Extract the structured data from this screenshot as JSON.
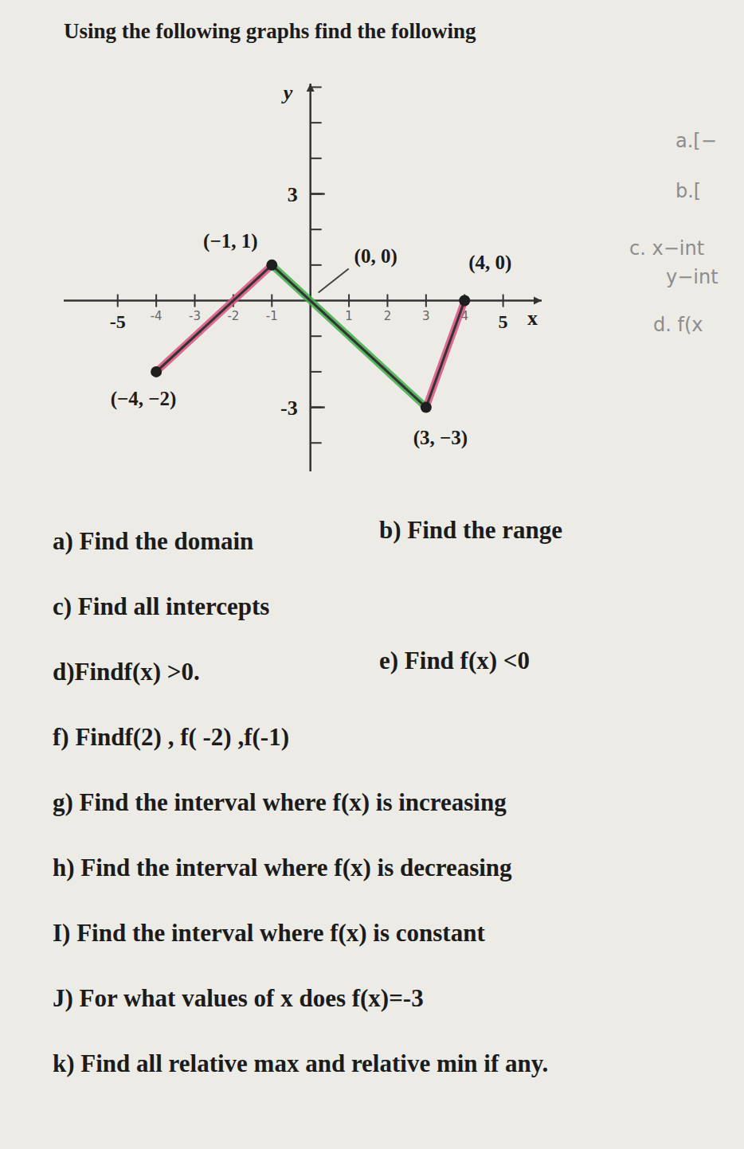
{
  "header": {
    "title": "Using the following graphs find the following"
  },
  "chart_data": {
    "type": "line",
    "x_label": "x",
    "y_label": "y",
    "xlim": [
      -6.4,
      6
    ],
    "ylim": [
      -4.8,
      6.1
    ],
    "xticks": [
      -5,
      -4,
      -3,
      -2,
      -1,
      1,
      2,
      3,
      4,
      5
    ],
    "yticks": [
      -3,
      3
    ],
    "grid": false,
    "series": [
      {
        "type": "line",
        "color": "#333333",
        "x": [
          -4,
          -1,
          0,
          3,
          4
        ],
        "values": [
          -2,
          1,
          0,
          -3,
          0
        ]
      },
      {
        "type": "highlight",
        "color": "#d9507f",
        "x": [
          -4,
          -1
        ],
        "values": [
          -2,
          1
        ]
      },
      {
        "type": "highlight",
        "color": "#3fae49",
        "x": [
          -1,
          0,
          3
        ],
        "values": [
          1,
          0,
          -3
        ]
      },
      {
        "type": "highlight",
        "color": "#d9507f",
        "x": [
          3,
          4
        ],
        "values": [
          -3,
          0
        ]
      },
      {
        "type": "scatter",
        "color": "#1e1e1e",
        "marker": "dot",
        "x": [
          -4,
          -1,
          3,
          4
        ],
        "values": [
          -2,
          1,
          -3,
          0
        ]
      }
    ],
    "annotations": [
      {
        "text": "(−1, 1)",
        "x": -1,
        "y": 1,
        "position": "above-left"
      },
      {
        "text": "(0, 0)",
        "x": 0,
        "y": 0,
        "position": "above-right"
      },
      {
        "text": "(4, 0)",
        "x": 4,
        "y": 0,
        "position": "above"
      },
      {
        "text": "(−4, −2)",
        "x": -4,
        "y": -2,
        "position": "below"
      },
      {
        "text": "(3, −3)",
        "x": 3,
        "y": -3,
        "position": "below"
      }
    ]
  },
  "margin_notes": [
    "a.[−",
    "b.[",
    "c. x−int",
    "y−int",
    "d. f(x"
  ],
  "questions": [
    [
      "a) Find the domain",
      "b) Find the range"
    ],
    [
      "c) Find all intercepts"
    ],
    [
      "d)Findf(x) >0.",
      "e) Find f(x) <0"
    ],
    [
      "f) Findf(2) , f( -2) ,f(-1)"
    ],
    [
      "g) Find the interval where f(x) is increasing"
    ],
    [
      "h) Find the interval where f(x) is decreasing"
    ],
    [
      "I) Find the interval where f(x) is constant"
    ],
    [
      "J) For what values of x does f(x)=-3"
    ],
    [
      "k) Find all relative max and relative min if any."
    ]
  ]
}
